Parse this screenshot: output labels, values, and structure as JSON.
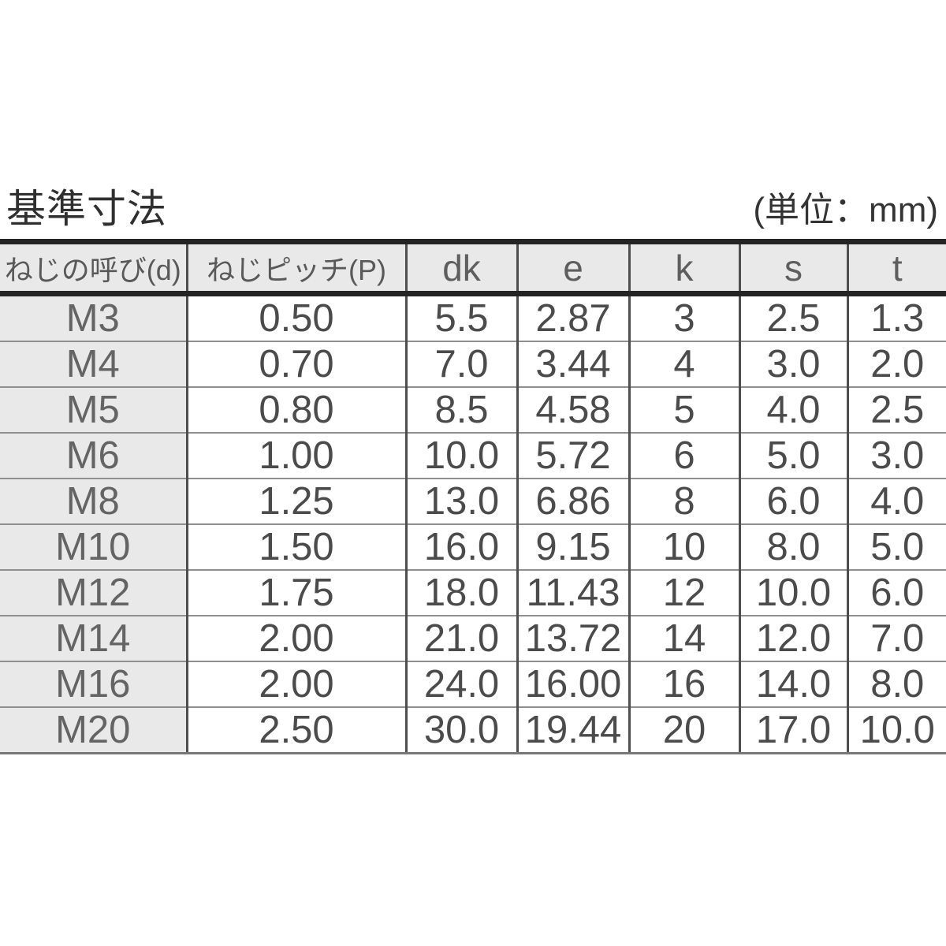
{
  "title": "基準寸法",
  "unit_label": "(単位：mm)",
  "chart_data": {
    "type": "table",
    "title": "基準寸法",
    "unit": "mm",
    "columns": [
      "ねじの呼び(d)",
      "ねじピッチ(P)",
      "dk",
      "e",
      "k",
      "s",
      "t"
    ],
    "rows": [
      [
        "M3",
        "0.50",
        "5.5",
        "2.87",
        "3",
        "2.5",
        "1.3"
      ],
      [
        "M4",
        "0.70",
        "7.0",
        "3.44",
        "4",
        "3.0",
        "2.0"
      ],
      [
        "M5",
        "0.80",
        "8.5",
        "4.58",
        "5",
        "4.0",
        "2.5"
      ],
      [
        "M6",
        "1.00",
        "10.0",
        "5.72",
        "6",
        "5.0",
        "3.0"
      ],
      [
        "M8",
        "1.25",
        "13.0",
        "6.86",
        "8",
        "6.0",
        "4.0"
      ],
      [
        "M10",
        "1.50",
        "16.0",
        "9.15",
        "10",
        "8.0",
        "5.0"
      ],
      [
        "M12",
        "1.75",
        "18.0",
        "11.43",
        "12",
        "10.0",
        "6.0"
      ],
      [
        "M14",
        "2.00",
        "21.0",
        "13.72",
        "14",
        "12.0",
        "7.0"
      ],
      [
        "M16",
        "2.00",
        "24.0",
        "16.00",
        "16",
        "14.0",
        "8.0"
      ],
      [
        "M20",
        "2.50",
        "30.0",
        "19.44",
        "20",
        "17.0",
        "10.0"
      ]
    ]
  },
  "colors": {
    "header_background": "#e9e9e9",
    "heavy_border": "#242424",
    "row_separator": "#8f8f8f",
    "column_divider": "#4e4e4e",
    "text": "#4b4b4b"
  }
}
